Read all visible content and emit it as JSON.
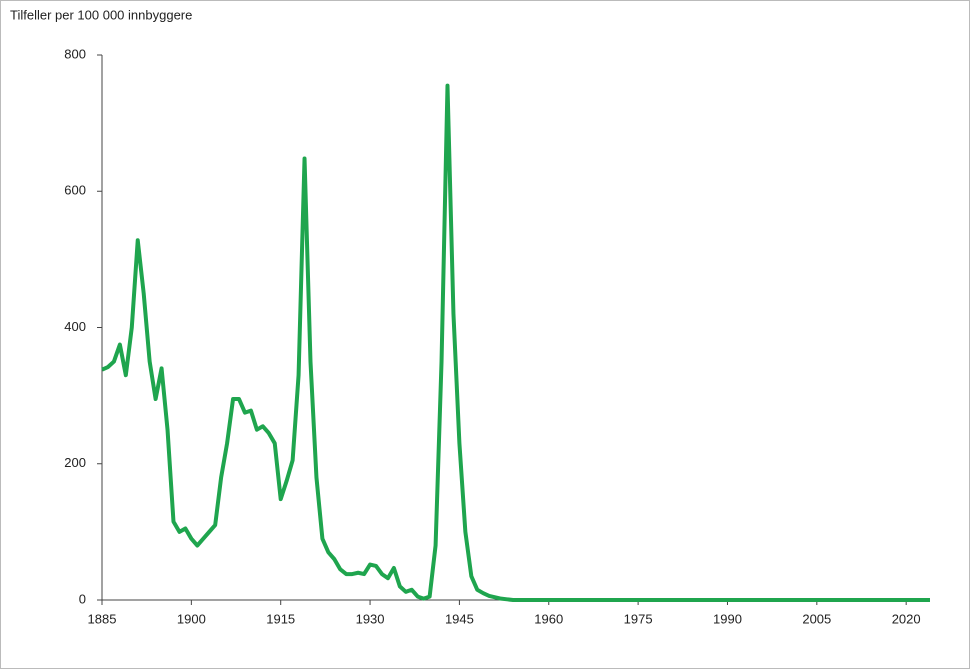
{
  "chart_data": {
    "type": "line",
    "y_axis_label": "Tilfeller per 100 000 innbyggere",
    "x": [
      1885,
      1886,
      1887,
      1888,
      1889,
      1890,
      1891,
      1892,
      1893,
      1894,
      1895,
      1896,
      1897,
      1898,
      1899,
      1900,
      1901,
      1902,
      1903,
      1904,
      1905,
      1906,
      1907,
      1908,
      1909,
      1910,
      1911,
      1912,
      1913,
      1914,
      1915,
      1916,
      1917,
      1918,
      1919,
      1920,
      1921,
      1922,
      1923,
      1924,
      1925,
      1926,
      1927,
      1928,
      1929,
      1930,
      1931,
      1932,
      1933,
      1934,
      1935,
      1936,
      1937,
      1938,
      1939,
      1940,
      1941,
      1942,
      1943,
      1944,
      1945,
      1946,
      1947,
      1948,
      1949,
      1950,
      1951,
      1952,
      1953,
      1954,
      1955,
      2024
    ],
    "series": [
      {
        "color": "#1fa54e",
        "values": [
          338,
          342,
          350,
          375,
          330,
          400,
          528,
          450,
          350,
          295,
          340,
          250,
          115,
          100,
          105,
          90,
          80,
          90,
          100,
          110,
          180,
          230,
          295,
          295,
          275,
          278,
          250,
          255,
          245,
          230,
          148,
          175,
          205,
          330,
          648,
          350,
          180,
          90,
          70,
          60,
          45,
          38,
          38,
          40,
          38,
          52,
          50,
          38,
          32,
          47,
          20,
          12,
          15,
          5,
          2,
          5,
          80,
          350,
          755,
          420,
          230,
          100,
          35,
          15,
          10,
          6,
          4,
          2,
          1,
          0,
          0,
          0
        ]
      }
    ],
    "xlim": [
      1885,
      2024
    ],
    "ylim": [
      0,
      800
    ],
    "xticks": [
      1885,
      1900,
      1915,
      1930,
      1945,
      1960,
      1975,
      1990,
      2005,
      2020
    ],
    "yticks": [
      0,
      200,
      400,
      600,
      800
    ]
  }
}
